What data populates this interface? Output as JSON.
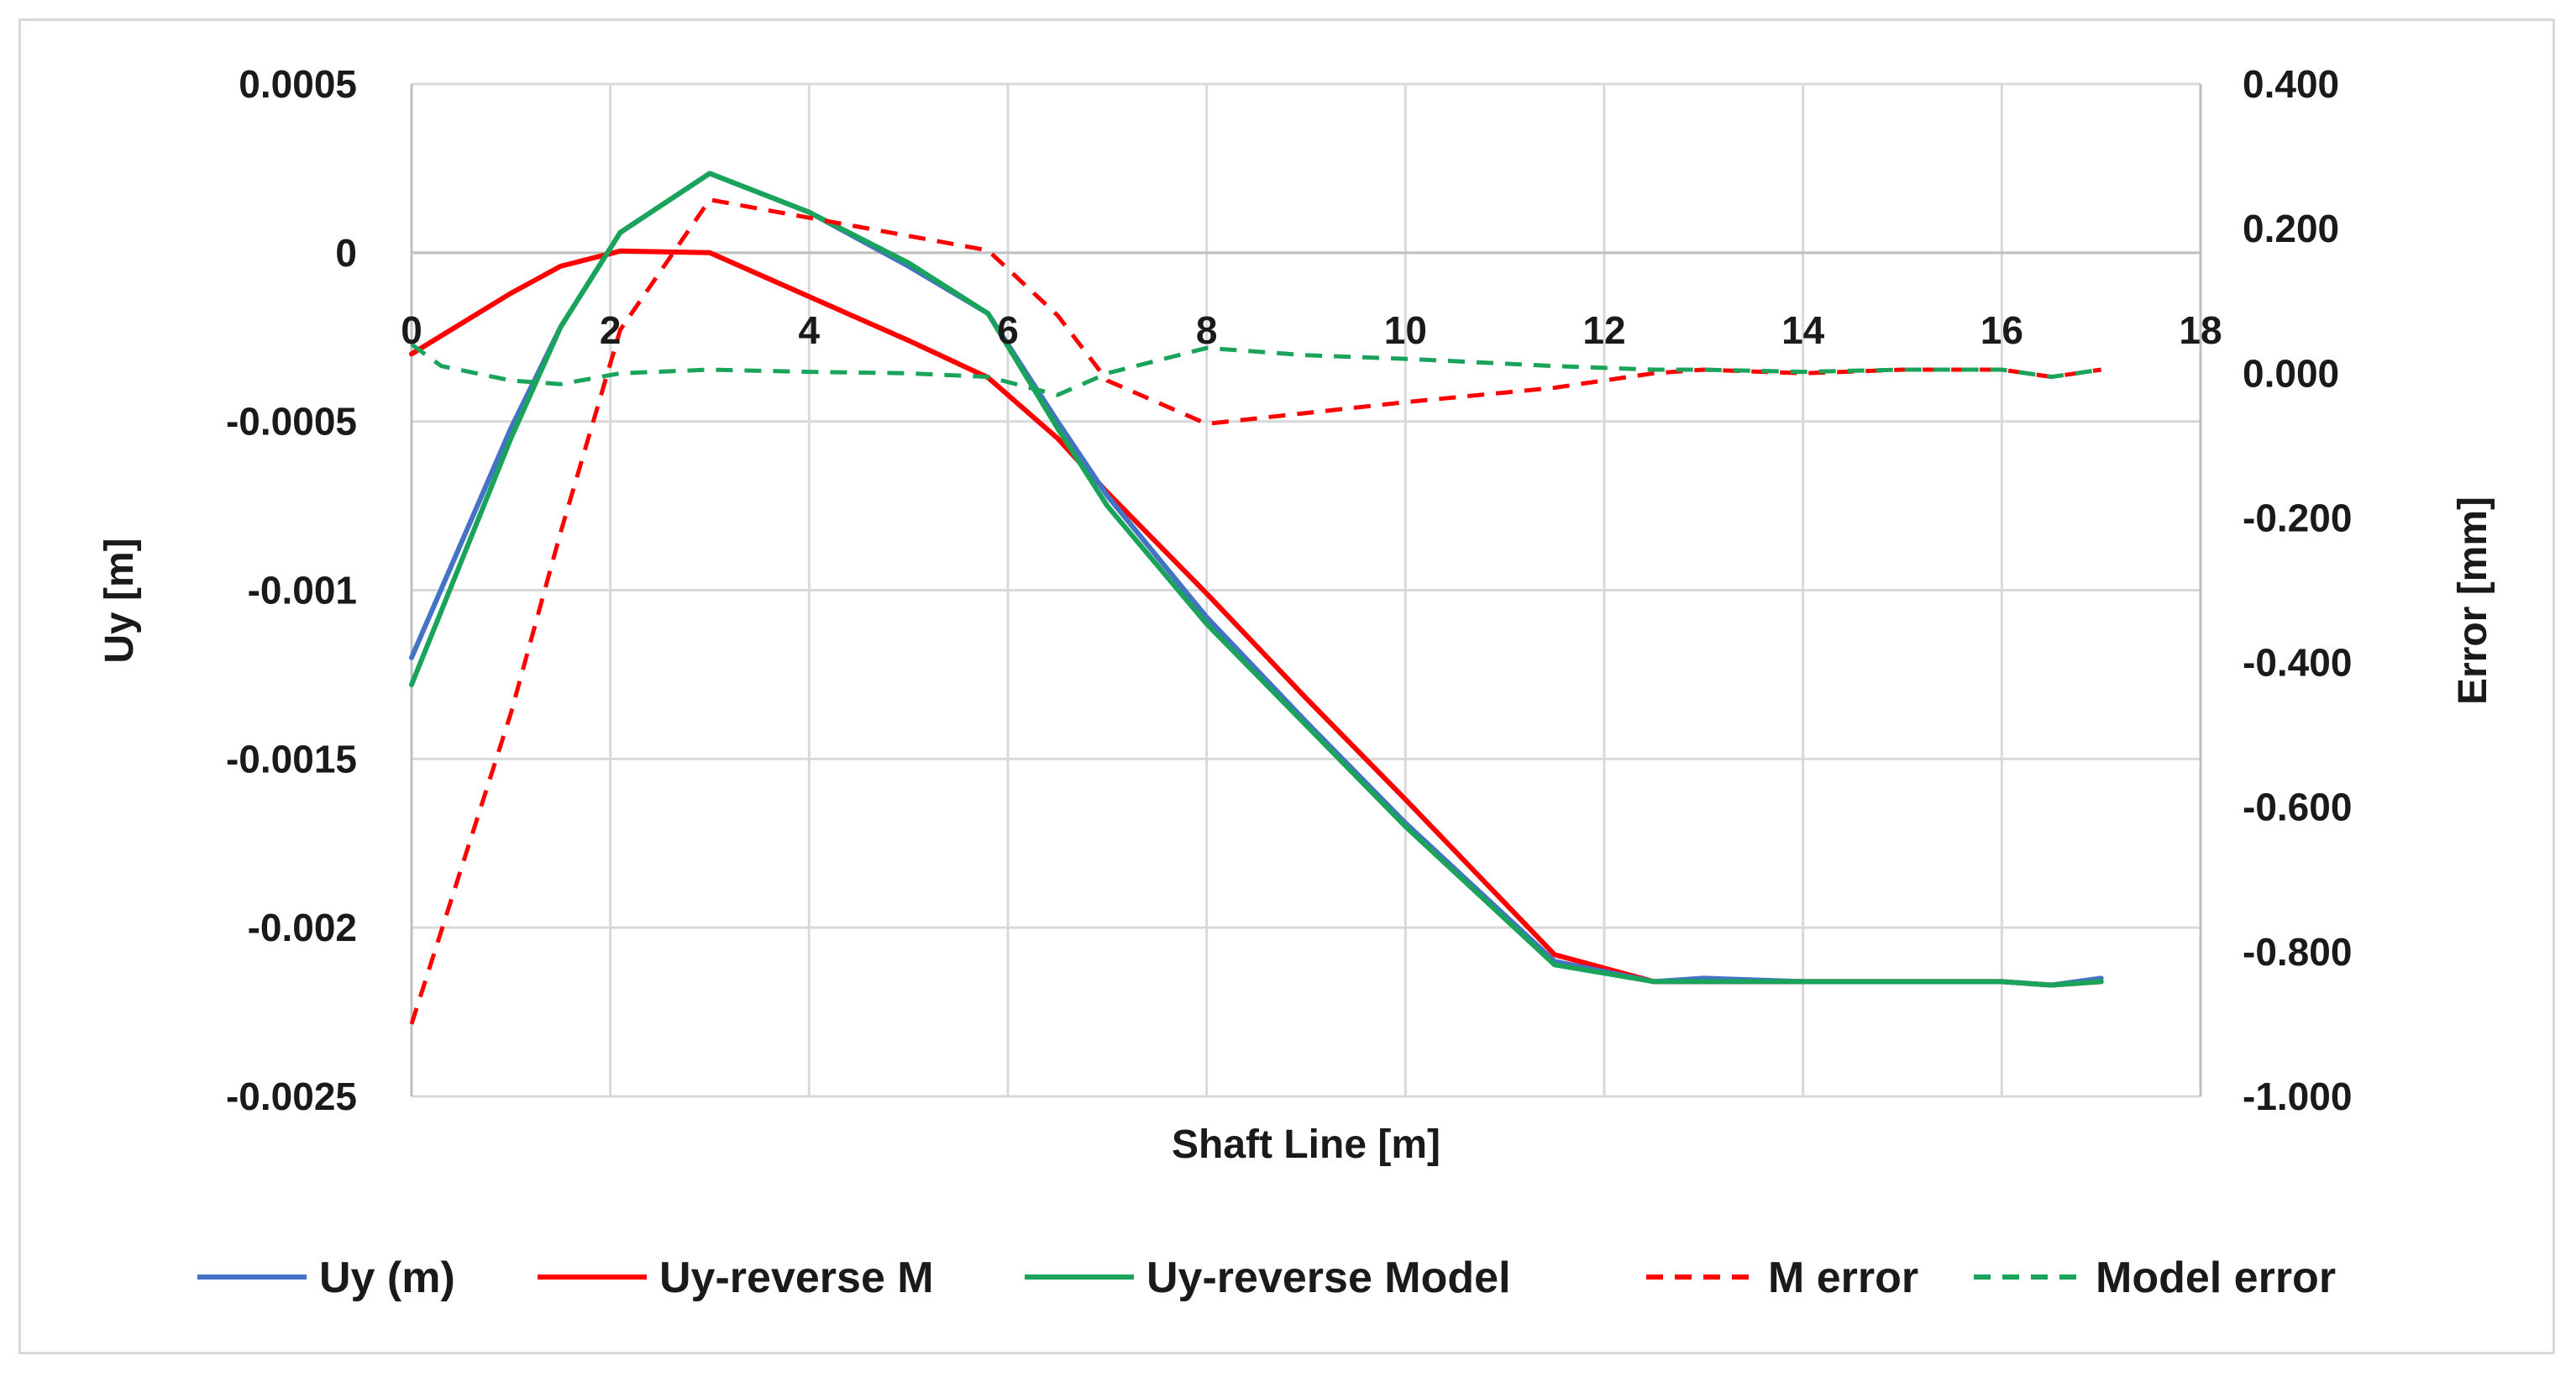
{
  "chart_data": {
    "type": "line",
    "title": "",
    "xlabel": "Shaft Line [m]",
    "ylabel_left": "Uy [m]",
    "ylabel_right": "Error [mm]",
    "xlim": [
      0,
      18
    ],
    "ylim_left": [
      -0.0025,
      0.0005
    ],
    "ylim_right": [
      -1.0,
      0.4
    ],
    "x_ticks": [
      "0",
      "2",
      "4",
      "6",
      "8",
      "10",
      "12",
      "14",
      "16",
      "18"
    ],
    "y_left_ticks": [
      "0.0005",
      "0",
      "-0.0005",
      "-0.001",
      "-0.0015",
      "-0.002",
      "-0.0025"
    ],
    "y_right_ticks": [
      "0.400",
      "0.200",
      "0.000",
      "-0.200",
      "-0.400",
      "-0.600",
      "-0.800",
      "-1.000"
    ],
    "grid": true,
    "legend_position": "bottom",
    "series": [
      {
        "name": "Uy (m)",
        "axis": "left",
        "color": "#4472c4",
        "dash": "solid",
        "x": [
          0,
          1,
          1.5,
          2.1,
          3,
          4,
          5,
          5.8,
          6.5,
          7,
          8,
          9,
          10,
          11.5,
          12.5,
          13,
          14,
          15,
          16,
          16.5,
          17
        ],
        "y": [
          -0.0012,
          -0.00052,
          -0.00022,
          6e-05,
          0.000235,
          0.00012,
          -4e-05,
          -0.00018,
          -0.0005,
          -0.00072,
          -0.00108,
          -0.00139,
          -0.00169,
          -0.0021,
          -0.00216,
          -0.00215,
          -0.00216,
          -0.00216,
          -0.00216,
          -0.00217,
          -0.00215
        ]
      },
      {
        "name": "Uy-reverse M",
        "axis": "left",
        "color": "#ff0000",
        "dash": "solid",
        "x": [
          0,
          1,
          1.5,
          2.1,
          3,
          4,
          5,
          5.8,
          6.5,
          7,
          8,
          9,
          10,
          11.5,
          12.5,
          13,
          14,
          15,
          16,
          16.5,
          17
        ],
        "y": [
          -0.0003,
          -0.00012,
          -4e-05,
          5e-06,
          0.0,
          -0.00013,
          -0.00026,
          -0.00037,
          -0.00055,
          -0.00071,
          -0.00101,
          -0.00132,
          -0.00162,
          -0.00208,
          -0.00216,
          -0.00216,
          -0.00216,
          -0.00216,
          -0.00216,
          -0.00217,
          -0.00216
        ]
      },
      {
        "name": "Uy-reverse Model",
        "axis": "left",
        "color": "#1aa35a",
        "dash": "solid",
        "x": [
          0,
          1,
          1.5,
          2.1,
          3,
          4,
          5,
          5.8,
          6.5,
          7,
          8,
          9,
          10,
          11.5,
          12.5,
          13,
          14,
          15,
          16,
          16.5,
          17
        ],
        "y": [
          -0.00128,
          -0.00055,
          -0.00022,
          6e-05,
          0.000235,
          0.00012,
          -3e-05,
          -0.00018,
          -0.00052,
          -0.00075,
          -0.0011,
          -0.0014,
          -0.0017,
          -0.00211,
          -0.00216,
          -0.00216,
          -0.00216,
          -0.00216,
          -0.00216,
          -0.00217,
          -0.00216
        ]
      },
      {
        "name": "M error",
        "axis": "right",
        "color": "#ff0000",
        "dash": "dashed",
        "x": [
          0,
          1,
          1.5,
          2.1,
          3,
          4,
          5,
          5.8,
          6.5,
          7,
          8,
          9,
          10,
          11.5,
          12.5,
          13,
          14,
          15,
          16,
          16.5,
          17
        ],
        "y": [
          -0.9,
          -0.47,
          -0.22,
          0.06,
          0.24,
          0.215,
          0.19,
          0.17,
          0.08,
          -0.01,
          -0.07,
          -0.055,
          -0.04,
          -0.02,
          0.0,
          0.005,
          0.0,
          0.005,
          0.005,
          -0.005,
          0.005
        ]
      },
      {
        "name": "Model error",
        "axis": "right",
        "color": "#1aa35a",
        "dash": "dashed",
        "x": [
          0,
          0.3,
          1,
          1.5,
          2.1,
          3,
          4,
          5,
          5.8,
          6.5,
          7,
          8,
          9,
          10,
          11.5,
          12.5,
          13,
          14,
          15,
          16,
          16.5,
          17
        ],
        "y": [
          0.04,
          0.01,
          -0.01,
          -0.015,
          0.0,
          0.005,
          0.002,
          0.0,
          -0.005,
          -0.03,
          0.0,
          0.035,
          0.025,
          0.02,
          0.01,
          0.005,
          0.005,
          0.002,
          0.005,
          0.005,
          -0.005,
          0.005
        ]
      }
    ]
  }
}
